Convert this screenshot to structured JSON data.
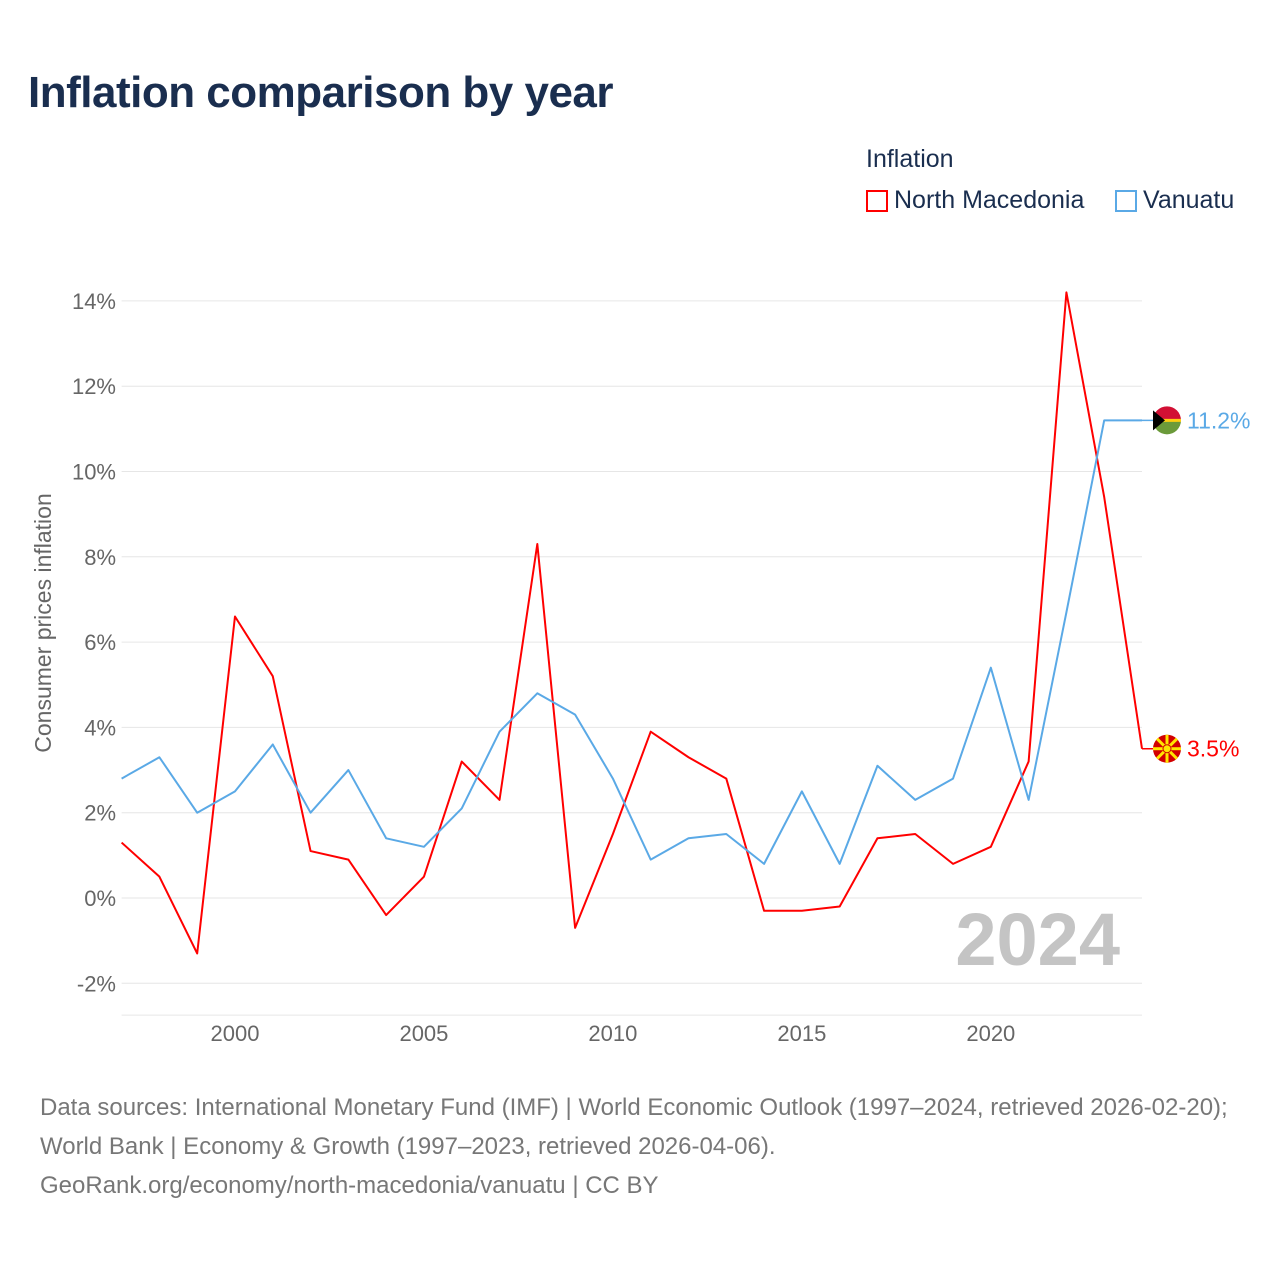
{
  "title": "Inflation comparison by year",
  "legend_title": "Inflation",
  "sources": "Data sources: International Monetary Fund (IMF) | World Economic Outlook (1997–2024, retrieved 2026-02-20); World Bank | Economy & Growth (1997–2023, retrieved 2026-04-06).",
  "credit": "GeoRank.org/economy/north-macedonia/vanuatu | CC BY",
  "chart_data": {
    "type": "line",
    "title": "Inflation comparison by year",
    "xlabel": "",
    "ylabel": "Consumer prices inflation",
    "xlim": [
      1997,
      2024
    ],
    "ylim": [
      -2.7,
      14.5
    ],
    "xticks": [
      2000,
      2005,
      2010,
      2015,
      2020
    ],
    "xtick_labels": [
      "2000",
      "2005",
      "2010",
      "2015",
      "2020"
    ],
    "yticks": [
      -2,
      0,
      2,
      4,
      6,
      8,
      10,
      12,
      14
    ],
    "ytick_labels": [
      "-2%",
      "0%",
      "2%",
      "4%",
      "6%",
      "8%",
      "10%",
      "12%",
      "14%"
    ],
    "year_watermark": "2024",
    "legend_placement": "top-right",
    "grid": true,
    "series": [
      {
        "name": "North Macedonia",
        "color": "#ff0000",
        "end_label": "3.5%",
        "x": [
          1997,
          1998,
          1999,
          2000,
          2001,
          2002,
          2003,
          2004,
          2005,
          2006,
          2007,
          2008,
          2009,
          2010,
          2011,
          2012,
          2013,
          2014,
          2015,
          2016,
          2017,
          2018,
          2019,
          2020,
          2021,
          2022,
          2023,
          2024
        ],
        "values": [
          1.3,
          0.5,
          -1.3,
          6.6,
          5.2,
          1.1,
          0.9,
          -0.4,
          0.5,
          3.2,
          2.3,
          8.3,
          -0.7,
          1.5,
          3.9,
          3.3,
          2.8,
          -0.3,
          -0.3,
          -0.2,
          1.4,
          1.5,
          0.8,
          1.2,
          3.2,
          14.2,
          9.4,
          3.5
        ]
      },
      {
        "name": "Vanuatu",
        "color": "#5aa9e6",
        "end_label": "11.2%",
        "x": [
          1997,
          1998,
          1999,
          2000,
          2001,
          2002,
          2003,
          2004,
          2005,
          2006,
          2007,
          2008,
          2009,
          2010,
          2011,
          2012,
          2013,
          2014,
          2015,
          2016,
          2017,
          2018,
          2019,
          2020,
          2021,
          2022,
          2023
        ],
        "values": [
          2.8,
          3.3,
          2.0,
          2.5,
          3.6,
          2.0,
          3.0,
          1.4,
          1.2,
          2.1,
          3.9,
          4.8,
          4.3,
          2.8,
          0.9,
          1.4,
          1.5,
          0.8,
          2.5,
          0.8,
          3.1,
          2.3,
          2.8,
          5.4,
          2.3,
          6.7,
          11.2
        ]
      }
    ]
  }
}
